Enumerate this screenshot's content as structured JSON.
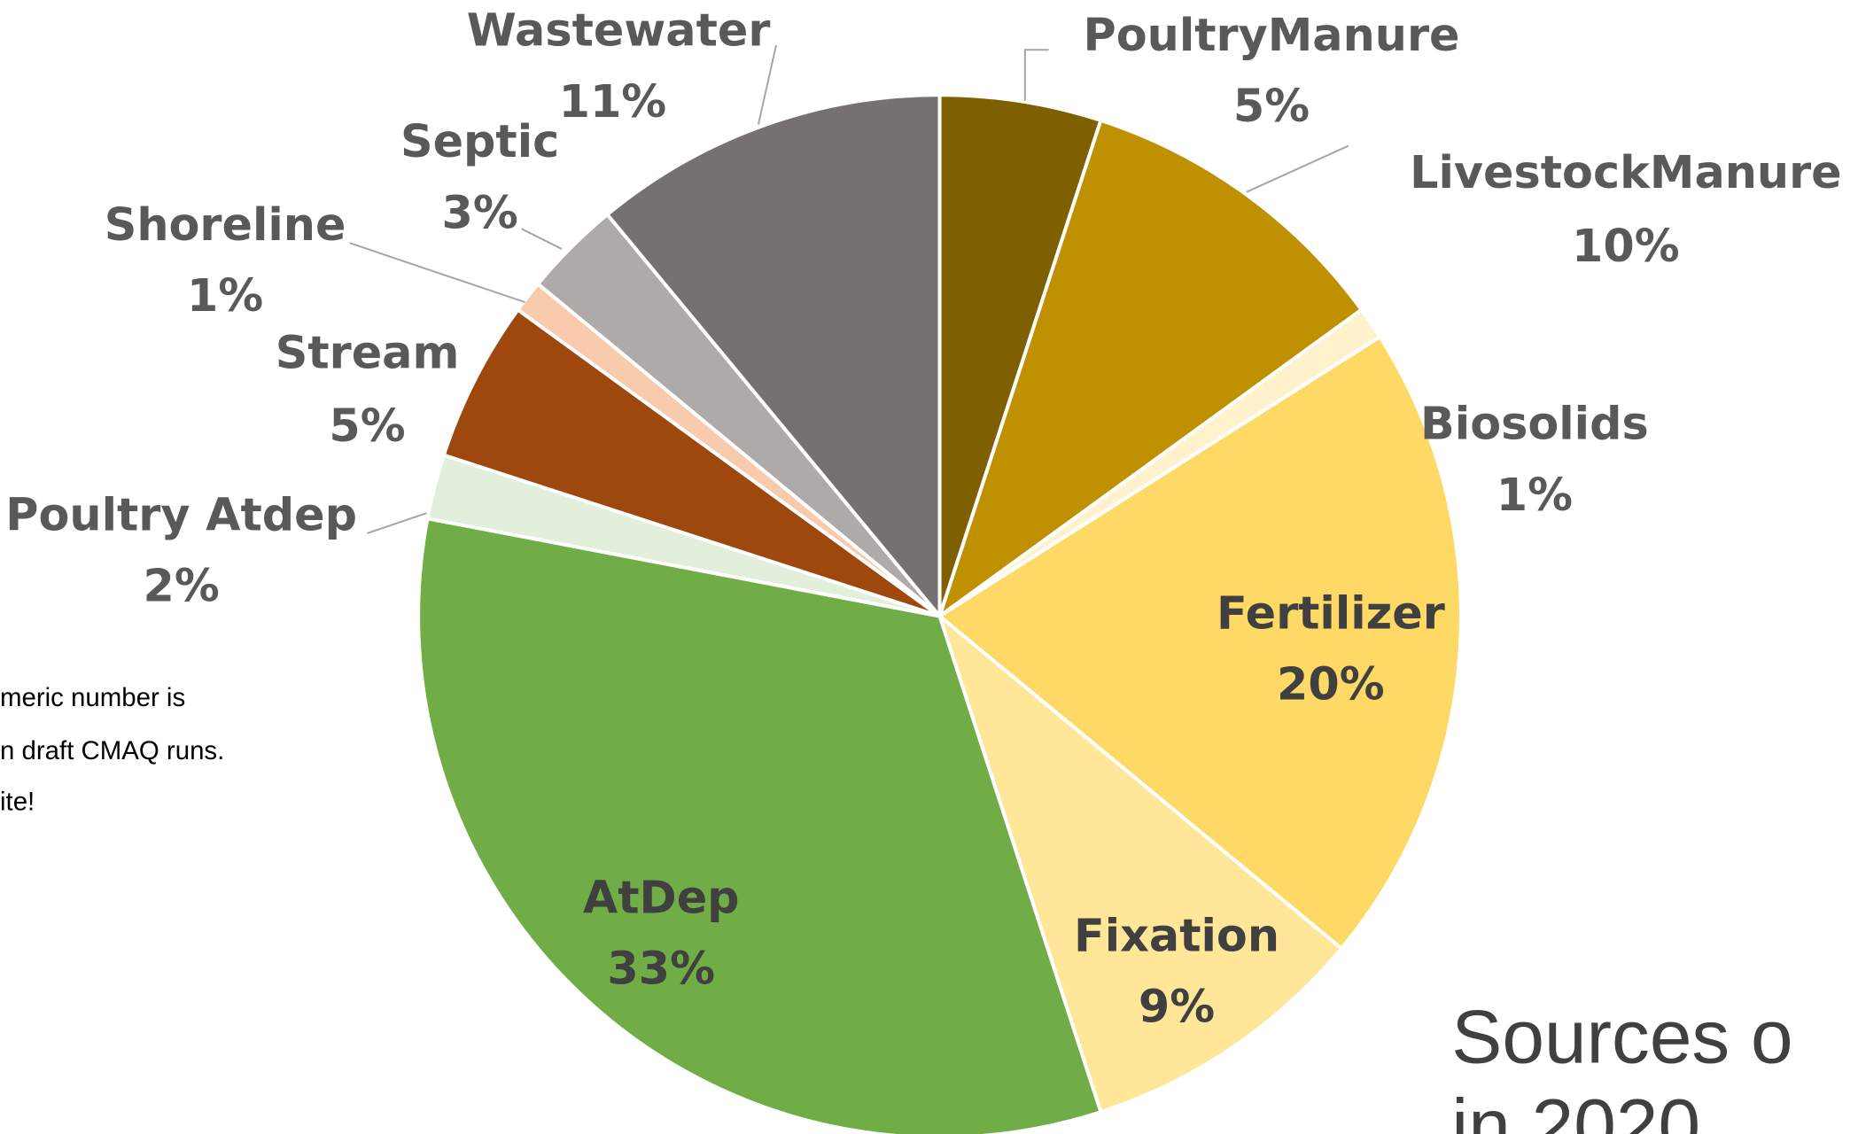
{
  "chart_data": {
    "type": "pie",
    "title": "Sources o",
    "subtitle": "in 2020",
    "annotations": [
      "meric number is",
      "n draft CMAQ runs.",
      "ite!"
    ],
    "categories": [
      "PoultryManure",
      "LivestockManure",
      "Biosolids",
      "Fertilizer",
      "Fixation",
      "AtDep",
      "Poultry Atdep",
      "Stream",
      "Shoreline",
      "Septic",
      "Wastewater"
    ],
    "values": [
      5,
      10,
      1,
      20,
      9,
      33,
      2,
      5,
      1,
      3,
      11
    ],
    "value_labels": [
      "5%",
      "10%",
      "1%",
      "20%",
      "9%",
      "33%",
      "2%",
      "5%",
      "1%",
      "3%",
      "11%"
    ],
    "colors": [
      "#7f6000",
      "#bf9000",
      "#fff2cc",
      "#ffd966",
      "#ffe699",
      "#70ad47",
      "#e2efda",
      "#9e480e",
      "#f8cbad",
      "#aeaaaa",
      "#767171"
    ]
  }
}
